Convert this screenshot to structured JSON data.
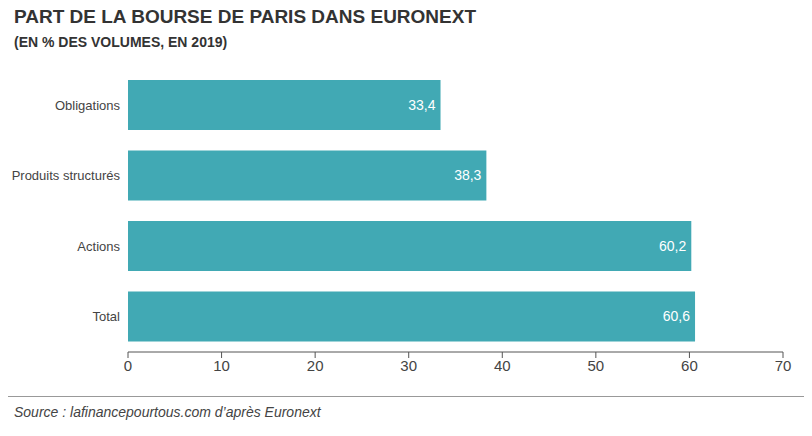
{
  "chart_data": {
    "type": "bar",
    "title": "PART DE LA BOURSE DE PARIS DANS EURONEXT",
    "subtitle": "(EN % DES VOLUMES, EN 2019)",
    "source": "Source : lafinancepourtous.com d’après Euronext",
    "categories": [
      "Obligations",
      "Produits structurés",
      "Actions",
      "Total"
    ],
    "values": [
      33.4,
      38.3,
      60.2,
      60.6
    ],
    "value_labels": [
      "33,4",
      "38,3",
      "60,2",
      "60,6"
    ],
    "color": "#41a9b4",
    "orientation": "horizontal",
    "data_labels": true,
    "grid": false,
    "xlim": [
      0,
      70
    ],
    "xticks": [
      0,
      10,
      20,
      30,
      40,
      50,
      60,
      70
    ]
  }
}
